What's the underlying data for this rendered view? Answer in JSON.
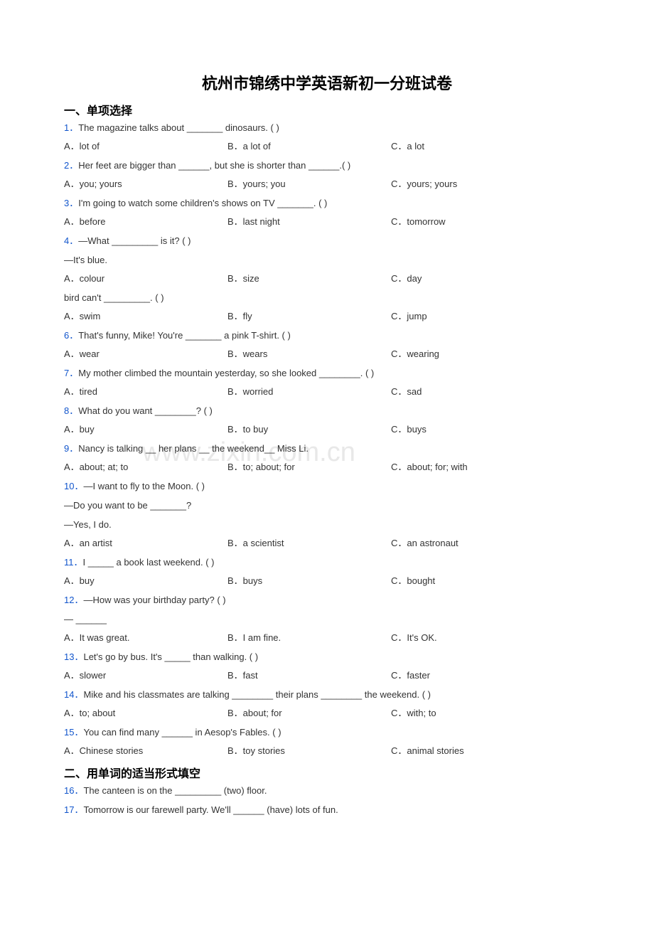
{
  "title": "杭州市锦绣中学英语新初一分班试卷",
  "watermark": "www.zixin.com.cn",
  "section1": {
    "heading": "一、单项选择",
    "questions": [
      {
        "num": "1．",
        "text": "The magazine talks about _______ dinosaurs. (   )",
        "a": "A．lot of",
        "b": "B．a lot of",
        "c": "C．a lot"
      },
      {
        "num": "2．",
        "text": "Her feet are bigger than ______, but she is shorter than ______.(   )",
        "a": "A．you; yours",
        "b": "B．yours; you",
        "c": "C．yours; yours"
      },
      {
        "num": "3．",
        "text": "I'm going to watch some children's shows on TV _______. (   )",
        "a": "A．before",
        "b": "B．last night",
        "c": "C．tomorrow"
      },
      {
        "num": "4．",
        "text": "—What _________ is it? (    )",
        "extra": "—It's blue.",
        "a": "A．colour",
        "b": "B．size",
        "c": "C．day"
      },
      {
        "text_only": "bird can't _________. (    )",
        "a": "A．swim",
        "b": "B．fly",
        "c": "C．jump"
      },
      {
        "num": "6．",
        "text": "That's funny, Mike! You're _______ a pink T-shirt. (   )",
        "a": "A．wear",
        "b": "B．wears",
        "c": "C．wearing"
      },
      {
        "num": "7．",
        "text": "My mother climbed the mountain yesterday, so she looked ________. (   )",
        "a": "A．tired",
        "b": "B．worried",
        "c": "C．sad"
      },
      {
        "num": "8．",
        "text": "What do you want ________? (    )",
        "a": "A．buy",
        "b": "B．to buy",
        "c": "C．buys"
      },
      {
        "num": "9．",
        "text": "Nancy is talking __ her plans __ the weekend__ Miss Li.",
        "a": "A．about; at; to",
        "b": "B．to; about; for",
        "c": "C．about; for; with"
      },
      {
        "num": "10．",
        "text": "—I want to fly to the Moon. ( )",
        "extra": "—Do you want to be _______?",
        "extra2": "—Yes, I do.",
        "a": "A．an artist",
        "b": "B．a scientist",
        "c": "C．an astronaut"
      },
      {
        "num": "11．",
        "text": "I _____ a book last weekend. (   )",
        "a": "A．buy",
        "b": "B．buys",
        "c": "C．bought"
      },
      {
        "num": "12．",
        "text": "—How was your birthday party? (   )",
        "extra": "— ______",
        "a": "A．It was great.",
        "b": "B．I am fine.",
        "c": "C．It's OK."
      },
      {
        "num": "13．",
        "text": "Let's go by bus. It's _____ than walking. (   )",
        "a": "A．slower",
        "b": "B．fast",
        "c": "C．faster"
      },
      {
        "num": "14．",
        "text": "Mike and his classmates are talking ________ their plans ________ the weekend. (    )",
        "a": "A．to; about",
        "b": "B．about; for",
        "c": "C．with; to"
      },
      {
        "num": "15．",
        "text": "You can find many ______ in Aesop's Fables. (   )",
        "a": "A．Chinese stories",
        "b": "B．toy stories",
        "c": "C．animal stories"
      }
    ]
  },
  "section2": {
    "heading": "二、用单词的适当形式填空",
    "questions": [
      {
        "num": "16．",
        "text": "The canteen is on the _________ (two) floor."
      },
      {
        "num": "17．",
        "text": "Tomorrow is our farewell party. We'll ______ (have) lots of fun."
      }
    ]
  }
}
